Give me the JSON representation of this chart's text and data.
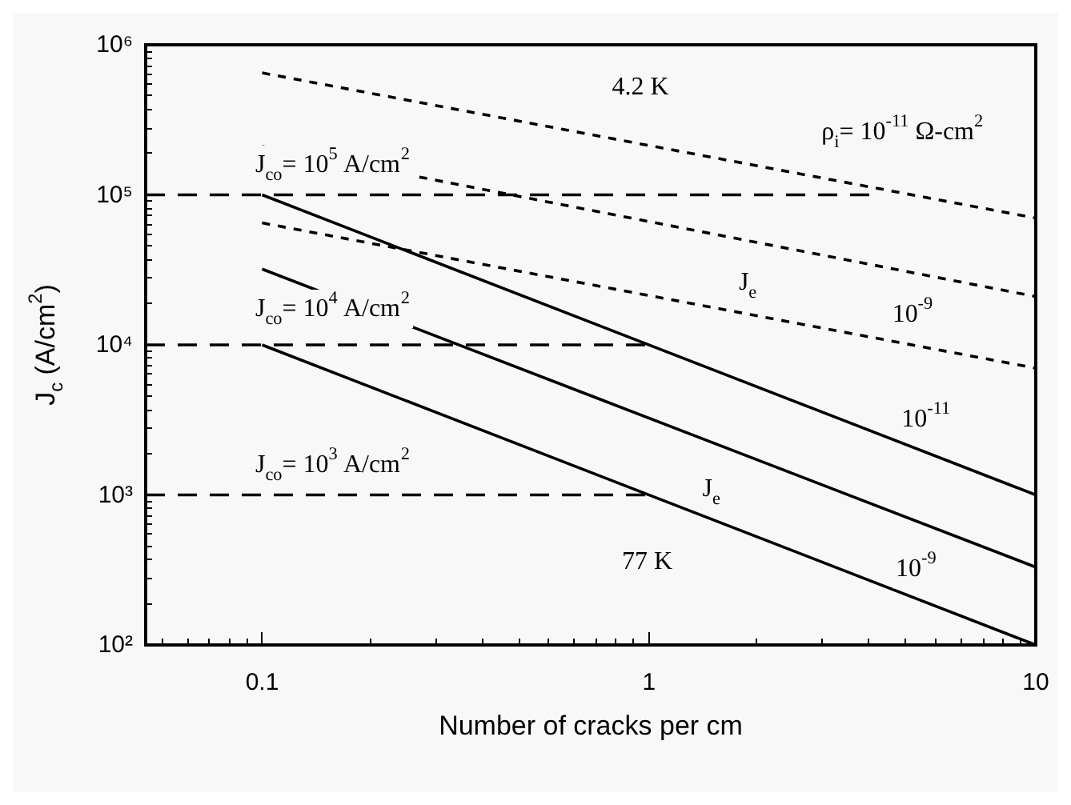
{
  "chart_data": {
    "type": "line",
    "xlabel": "Number of cracks per cm",
    "ylabel": "J$_{c}$ (A/cm$^{2}$)",
    "log": "xy",
    "grid": false,
    "marker": "none",
    "xlim": [
      0.05,
      10
    ],
    "xticks": [
      0.1,
      1,
      10
    ],
    "ylim": [
      100,
      1000000
    ],
    "yticks": [
      {
        "value": 100,
        "label": "10²"
      },
      {
        "value": 1000,
        "label": "10³"
      },
      {
        "value": 10000,
        "label": "10⁴"
      },
      {
        "value": 100000,
        "label": "10⁵"
      },
      {
        "value": 1000000,
        "label": "10⁶"
      }
    ],
    "series": [
      {
        "color": "#000000",
        "line_style": "solid",
        "x": [
          0.1,
          10
        ],
        "values": [
          100000,
          1000
        ]
      },
      {
        "color": "#000000",
        "line_style": "solid",
        "x": [
          0.1,
          10
        ],
        "values": [
          32000,
          330
        ]
      },
      {
        "color": "#000000",
        "line_style": "solid",
        "x": [
          0.1,
          10
        ],
        "values": [
          10000,
          100
        ]
      },
      {
        "color": "#000000",
        "line_style": "dotted",
        "x": [
          0.1,
          10
        ],
        "values": [
          650000,
          70000
        ]
      },
      {
        "color": "#000000",
        "line_style": "dotted",
        "x": [
          0.1,
          10
        ],
        "values": [
          210000,
          21000
        ]
      },
      {
        "color": "#000000",
        "line_style": "dotted",
        "x": [
          0.1,
          10
        ],
        "values": [
          65000,
          7000
        ]
      },
      {
        "color": "#000000",
        "line_style": "dashed",
        "x": [
          0.05,
          4
        ],
        "values": [
          100000,
          100000
        ]
      },
      {
        "color": "#000000",
        "line_style": "dashed",
        "x": [
          0.05,
          1
        ],
        "values": [
          10000,
          10000
        ]
      },
      {
        "color": "#000000",
        "line_style": "dashed",
        "x": [
          0.05,
          1
        ],
        "values": [
          1000,
          1000
        ]
      }
    ],
    "annotations": [
      {
        "text": "4.2 K",
        "x": 0.95,
        "y": 520000
      },
      "ρ$_{i}$= 10$^{-11}$ Ω-cm$^{2}$",
      "J$_{co}$= 10$^{5}$ A/cm$^{2}$",
      {
        "text": "J$_{e}$",
        "x": 1.8,
        "y": 26000
      },
      {
        "text": "10$^{-9}$",
        "x": 4.8,
        "y": 16000
      },
      "J$_{co}$= 10$^{4}$ A/cm$^{2}$",
      {
        "text": "10$^{-11}$",
        "x": 5.2,
        "y": 3200
      },
      "J$_{co}$= 10$^{3}$ A/cm$^{2}$",
      {
        "text": "J$_{e}$",
        "x": 1.45,
        "y": 1100
      },
      {
        "text": "77 K",
        "x": 0.99,
        "y": 360
      },
      {
        "text": "10$^{-9}$",
        "x": 4.9,
        "y": 320
      }
    ]
  }
}
